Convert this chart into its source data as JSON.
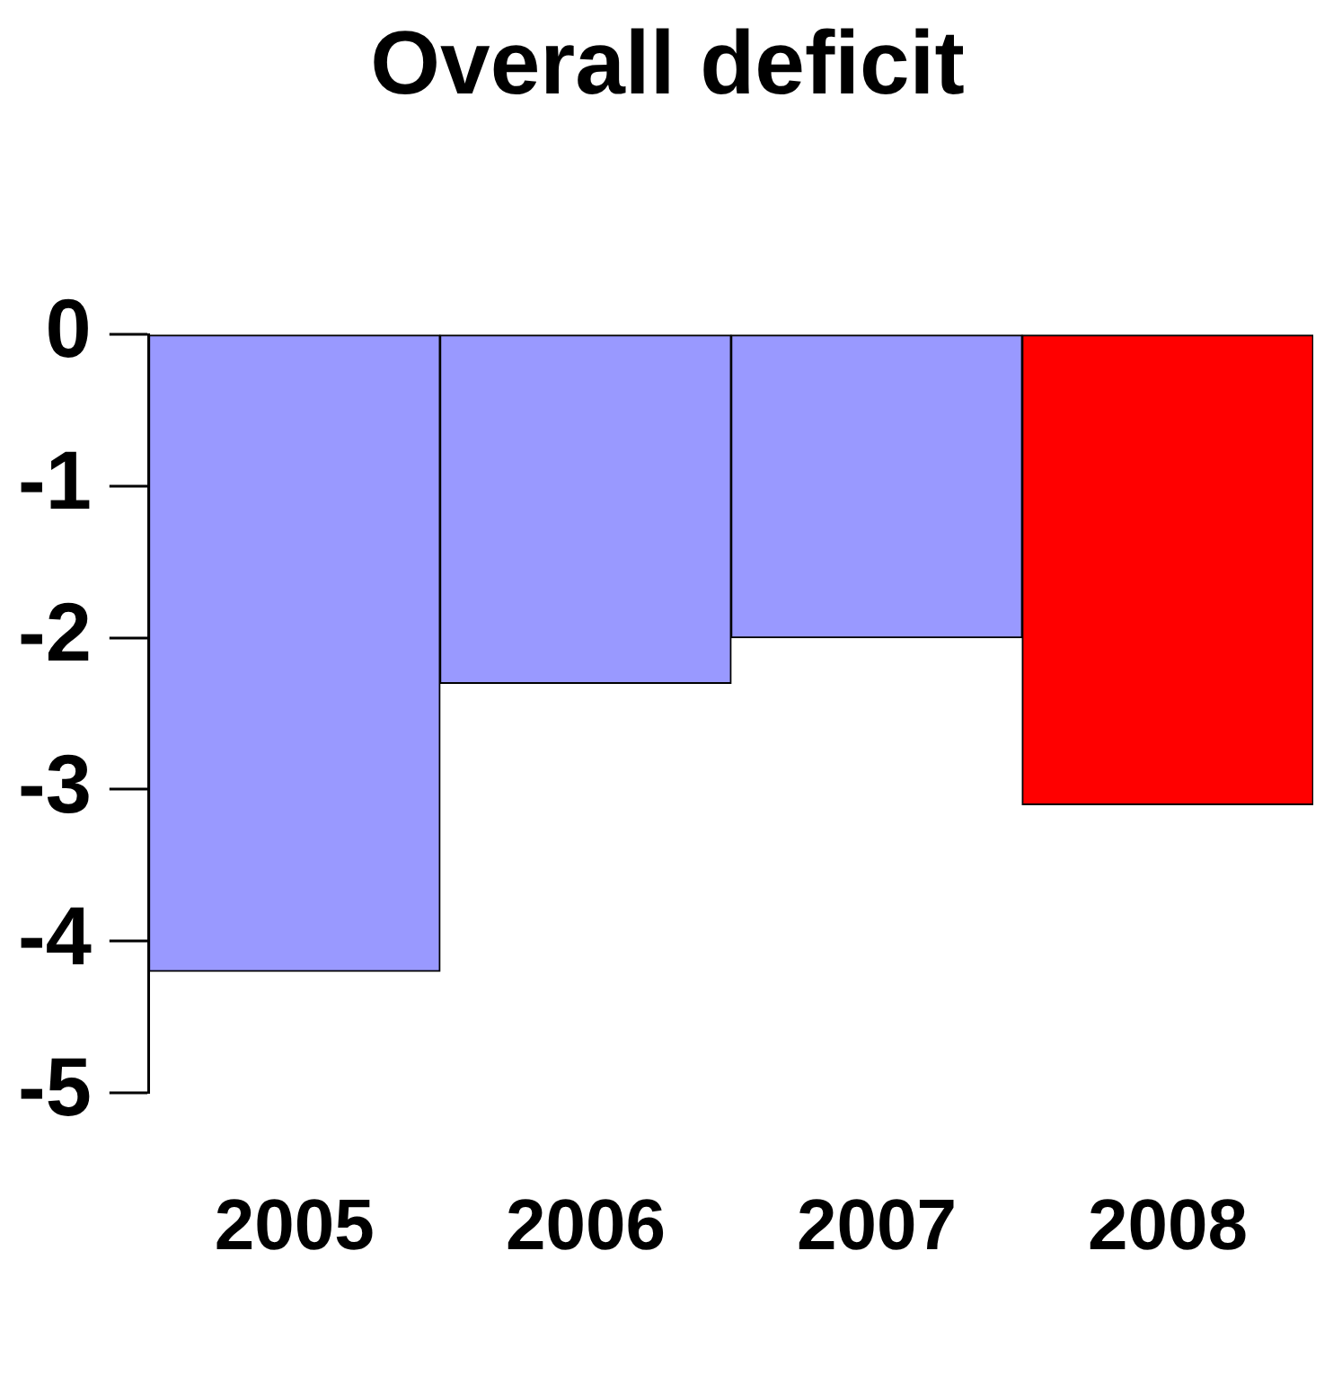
{
  "chart_data": {
    "type": "bar",
    "title": "Overall deficit",
    "categories": [
      "2005",
      "2006",
      "2007",
      "2008"
    ],
    "values": [
      -4.2,
      -2.3,
      -2.0,
      -3.1
    ],
    "colors": [
      "#9999ff",
      "#9999ff",
      "#9999ff",
      "#ff0000"
    ],
    "ylim": [
      -5,
      0
    ],
    "yticks": [
      -5,
      -4,
      -3,
      -2,
      -1,
      0
    ],
    "grid": false,
    "legend": false
  }
}
